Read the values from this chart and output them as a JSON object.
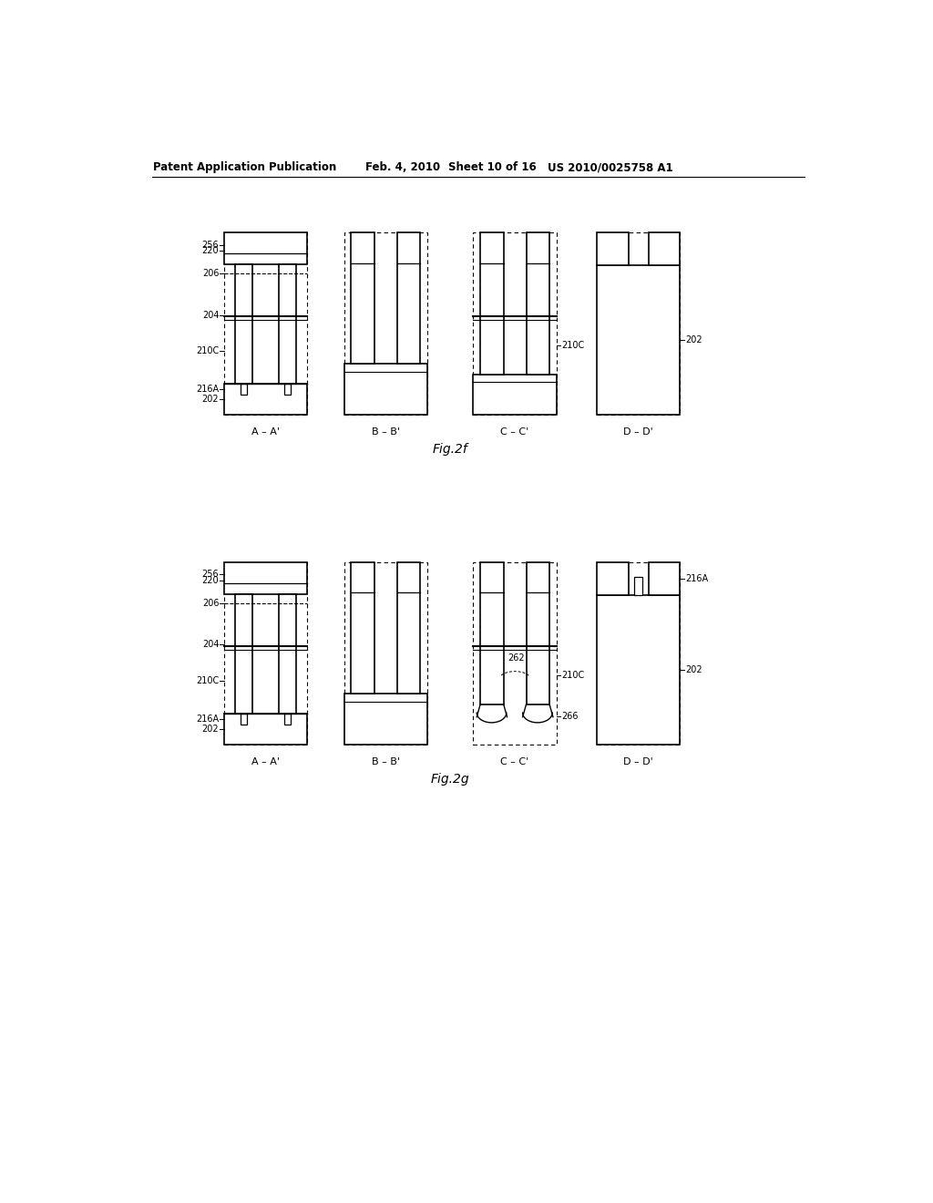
{
  "bg_color": "#ffffff",
  "header_text": "Patent Application Publication",
  "header_date": "Feb. 4, 2010",
  "header_sheet": "Sheet 10 of 16",
  "header_patent": "US 2010/0025758 A1",
  "fig2f_label": "Fig.2f",
  "fig2g_label": "Fig.2g",
  "section_labels": [
    "A – A'",
    "B – B'",
    "C – C'",
    "D – D'"
  ]
}
